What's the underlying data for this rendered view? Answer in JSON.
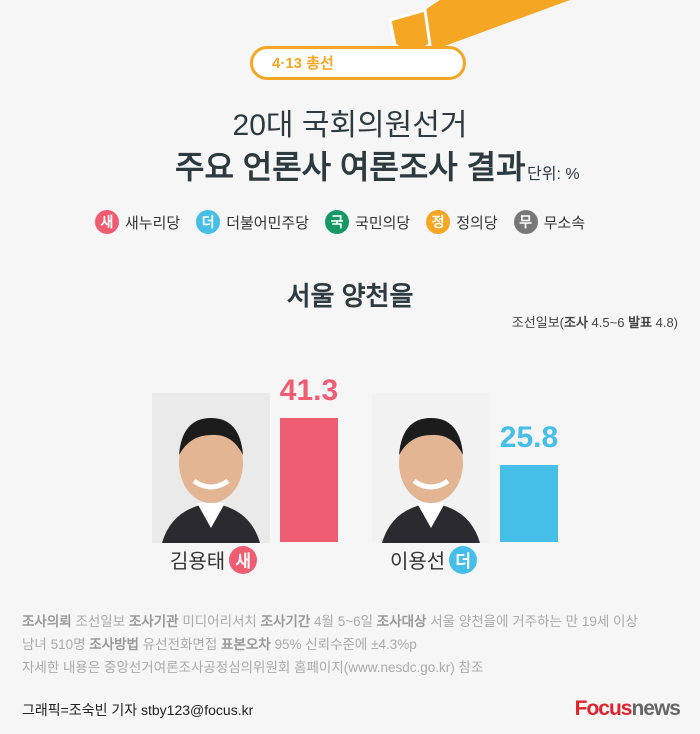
{
  "header": {
    "badge": "4·13 총선",
    "title_line1": "20대 국회의원선거",
    "title_line2": "주요 언론사 여론조사 결과",
    "unit": "단위: %"
  },
  "legend": [
    {
      "mark": "새",
      "label": "새누리당",
      "color": "#ef5d73"
    },
    {
      "mark": "더",
      "label": "더불어민주당",
      "color": "#45bfe8"
    },
    {
      "mark": "국",
      "label": "국민의당",
      "color": "#169866"
    },
    {
      "mark": "정",
      "label": "정의당",
      "color": "#f5a623"
    },
    {
      "mark": "무",
      "label": "무소속",
      "color": "#777777"
    }
  ],
  "district": "서울 양천을",
  "source": {
    "outlet": "조선일보(",
    "survey_label": "조사",
    "survey": " 4.5~6 ",
    "release_label": "발표",
    "release": " 4.8)"
  },
  "chart_data": {
    "type": "bar",
    "categories": [
      "김용태",
      "이용선"
    ],
    "parties": [
      "새",
      "더"
    ],
    "values": [
      41.3,
      25.8
    ],
    "value_labels": [
      "41.3",
      "25.8"
    ],
    "colors": [
      "#ef5d73",
      "#45bfe8"
    ],
    "unit": "%"
  },
  "notes": {
    "l1": [
      [
        "조사의뢰",
        " 조선일보 "
      ],
      [
        "조사기관",
        " 미디어리서치 "
      ],
      [
        "조사기간",
        " 4월 5~6일 "
      ],
      [
        "조사대상",
        " 서울 양천을에 거주하는 만 19세 이상"
      ]
    ],
    "l2a": "남녀 510명 ",
    "l2b": "조사방법",
    "l2c": " 유선전화면접  ",
    "l2d": "표본오차",
    "l2e": " 95% 신뢰수준에 ±4.3%p",
    "l3": "자세한 내용은 중앙선거여론조사공정심의위원회 홈페이지(www.nesdc.go.kr) 참조"
  },
  "credit": "그래픽=조숙빈 기자 stby123@focus.kr",
  "logo": {
    "a": "Focus",
    "b": "news"
  }
}
